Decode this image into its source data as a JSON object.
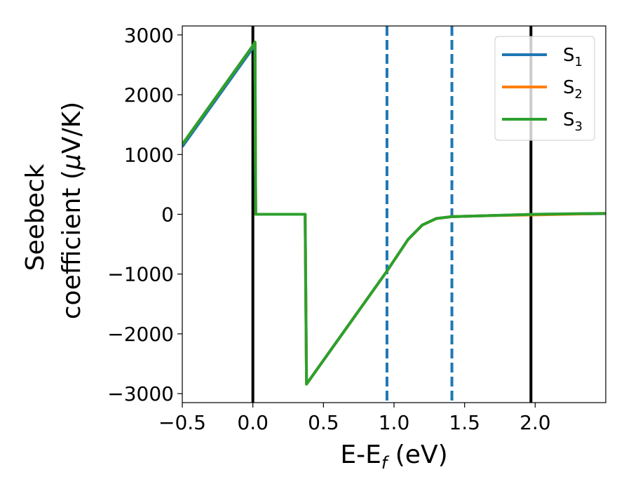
{
  "chart_data": {
    "type": "line",
    "xlabel": {
      "main": "E-E",
      "sub": "f",
      "unit": " (eV)"
    },
    "ylabel": {
      "line1": "Seebeck",
      "line2_a": "coefficient  (",
      "line2_mu": "μ",
      "line2_b": "V/K)"
    },
    "xlim": [
      -0.5,
      2.5
    ],
    "ylim": [
      -3150,
      3150
    ],
    "xticks": [
      -0.5,
      0.0,
      0.5,
      1.0,
      1.5,
      2.0
    ],
    "xtick_labels": [
      "−0.5",
      "0.0",
      "0.5",
      "1.0",
      "1.5",
      "2.0"
    ],
    "yticks": [
      -3000,
      -2000,
      -1000,
      0,
      1000,
      2000,
      3000
    ],
    "ytick_labels": [
      "−3000",
      "−2000",
      "−1000",
      "0",
      "1000",
      "2000",
      "3000"
    ],
    "vlines": [
      {
        "x": 0.0,
        "color": "#000000",
        "style": "solid"
      },
      {
        "x": 1.97,
        "color": "#000000",
        "style": "solid"
      },
      {
        "x": 0.95,
        "color": "#1f77b4",
        "style": "dashed"
      },
      {
        "x": 1.41,
        "color": "#1f77b4",
        "style": "dashed"
      }
    ],
    "legend_position": "top-right",
    "series": [
      {
        "name": "S",
        "sub": "1",
        "color": "#1f77b4",
        "x": [
          -0.5,
          0.0,
          0.015,
          0.02,
          0.37,
          0.38,
          0.95,
          1.1,
          1.2,
          1.3,
          1.41,
          1.7,
          2.0,
          2.5
        ],
        "y": [
          1130,
          2780,
          2860,
          0,
          0,
          -2840,
          -950,
          -420,
          -180,
          -70,
          -40,
          -20,
          0,
          10
        ]
      },
      {
        "name": "S",
        "sub": "2",
        "color": "#ff7f0e",
        "x": [
          -0.5,
          0.0,
          0.015,
          0.02,
          0.37,
          0.38,
          0.95,
          1.1,
          1.2,
          1.3,
          1.41,
          1.7,
          2.0,
          2.3,
          2.5
        ],
        "y": [
          1170,
          2820,
          2880,
          0,
          0,
          -2840,
          -950,
          -420,
          -180,
          -70,
          -40,
          -20,
          -10,
          5,
          15
        ]
      },
      {
        "name": "S",
        "sub": "3",
        "color": "#2ca02c",
        "x": [
          -0.5,
          0.0,
          0.015,
          0.02,
          0.37,
          0.38,
          0.95,
          1.1,
          1.2,
          1.3,
          1.41,
          1.7,
          2.0,
          2.3,
          2.5
        ],
        "y": [
          1170,
          2820,
          2880,
          0,
          0,
          -2840,
          -950,
          -420,
          -180,
          -70,
          -40,
          -20,
          0,
          10,
          15
        ]
      }
    ]
  }
}
